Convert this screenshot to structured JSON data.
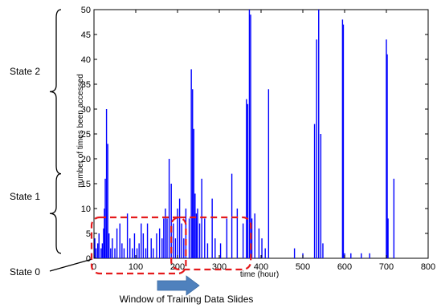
{
  "chart_data": {
    "type": "bar",
    "title": "",
    "xlabel": "time (hour)",
    "ylabel": "number of times been accessed",
    "xlim": [
      0,
      800
    ],
    "ylim": [
      0,
      50
    ],
    "x_ticks": [
      "0",
      "100",
      "200",
      "300",
      "400",
      "500",
      "600",
      "700",
      "800"
    ],
    "y_ticks": [
      "0",
      "5",
      "10",
      "15",
      "20",
      "25",
      "30",
      "35",
      "40",
      "45",
      "50"
    ],
    "grid": false,
    "series": [
      {
        "color": "#0000ff",
        "x": [
          2,
          5,
          9,
          12,
          17,
          20,
          23,
          25,
          27,
          30,
          33,
          36,
          40,
          44,
          50,
          55,
          62,
          67,
          72,
          80,
          86,
          92,
          97,
          103,
          108,
          113,
          118,
          124,
          128,
          137,
          142,
          150,
          157,
          163,
          167,
          171,
          175,
          180,
          185,
          190,
          195,
          200,
          205,
          210,
          215,
          220,
          228,
          233,
          236,
          239,
          242,
          245,
          248,
          253,
          258,
          265,
          272,
          283,
          290,
          303,
          318,
          330,
          343,
          357,
          365,
          368,
          372,
          375,
          378,
          385,
          395,
          402,
          410,
          418,
          480,
          500,
          528,
          533,
          538,
          543,
          548,
          595,
          597,
          600,
          615,
          640,
          660,
          700,
          702,
          704,
          718
        ],
        "y": [
          4,
          2,
          3,
          5,
          2,
          3,
          6,
          10,
          16,
          30,
          23,
          5,
          2,
          4,
          2,
          6,
          7,
          3,
          2,
          9,
          4,
          2,
          5,
          2,
          3,
          7,
          5,
          2,
          7,
          4,
          2,
          5,
          6,
          4,
          8,
          10,
          8,
          20,
          15,
          7,
          4,
          10,
          12,
          7,
          4,
          10,
          8,
          38,
          34,
          26,
          13,
          9,
          10,
          7,
          16,
          8,
          3,
          12,
          4,
          3,
          8,
          17,
          10,
          7,
          32,
          31,
          50,
          49,
          8,
          9,
          6,
          4,
          2,
          34,
          2,
          1,
          27,
          44,
          50,
          25,
          3,
          48,
          47,
          1,
          1,
          1,
          1,
          44,
          41,
          8,
          16
        ]
      }
    ],
    "annotations": {
      "state_2": "State 2",
      "state_1": "State 1",
      "state_0": "State 0",
      "window_caption": "Window of Training Data Slides"
    },
    "state_ranges": {
      "state_0": [
        0,
        0
      ],
      "state_1": [
        1,
        17
      ],
      "state_2": [
        17,
        50
      ]
    },
    "window_ranges": [
      [
        0,
        220
      ],
      [
        185,
        385
      ]
    ]
  }
}
